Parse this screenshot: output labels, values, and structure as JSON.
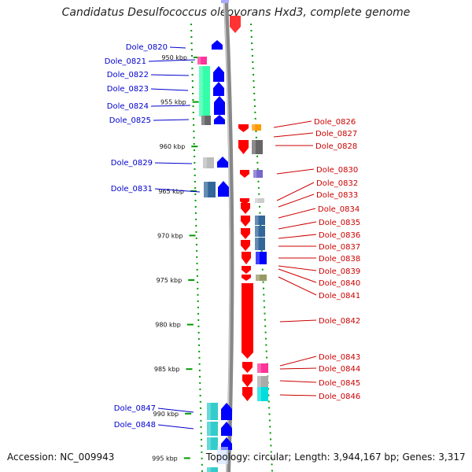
{
  "title": "Candidatus Desulfococcus oleovorans Hxd3, complete genome",
  "footer": {
    "accession": "Accession: NC_009943",
    "topology": "Topology: circular; Length: 3,944,167 bp; Genes: 3,317"
  },
  "scale_ticks": [
    {
      "kbp": 950,
      "label": "950 kbp"
    },
    {
      "kbp": 955,
      "label": "955 kbp"
    },
    {
      "kbp": 960,
      "label": "960 kbp"
    },
    {
      "kbp": 965,
      "label": "965 kbp"
    },
    {
      "kbp": 970,
      "label": "970 kbp"
    },
    {
      "kbp": 975,
      "label": "975 kbp"
    },
    {
      "kbp": 980,
      "label": "980 kbp"
    },
    {
      "kbp": 985,
      "label": "985 kbp"
    },
    {
      "kbp": 990,
      "label": "990 kbp"
    },
    {
      "kbp": 995,
      "label": "995 kbp"
    }
  ],
  "genes_left": [
    {
      "id": "Dole_0820",
      "color": "#ff3399"
    },
    {
      "id": "Dole_0821",
      "color": "#0000ff"
    },
    {
      "id": "Dole_0822",
      "color": "#33ffaa"
    },
    {
      "id": "Dole_0823",
      "color": "#0000ff"
    },
    {
      "id": "Dole_0824",
      "color": "#0000ff"
    },
    {
      "id": "Dole_0825",
      "color": "#666666"
    },
    {
      "id": "Dole_0829",
      "color": "#bbbbbb"
    },
    {
      "id": "Dole_0831",
      "color": "#336699"
    },
    {
      "id": "Dole_0847",
      "color": "#33cccc"
    },
    {
      "id": "Dole_0848",
      "color": "#0000ff"
    }
  ],
  "genes_right": [
    {
      "id": "Dole_0826",
      "color": "#ff0000"
    },
    {
      "id": "Dole_0827",
      "color": "#ff9900"
    },
    {
      "id": "Dole_0828",
      "color": "#666666"
    },
    {
      "id": "Dole_0830",
      "color": "#7766cc"
    },
    {
      "id": "Dole_0832",
      "color": "#ff0000"
    },
    {
      "id": "Dole_0833",
      "color": "#cccccc"
    },
    {
      "id": "Dole_0834",
      "color": "#ff0000"
    },
    {
      "id": "Dole_0835",
      "color": "#336699"
    },
    {
      "id": "Dole_0836",
      "color": "#336699"
    },
    {
      "id": "Dole_0837",
      "color": "#336699"
    },
    {
      "id": "Dole_0838",
      "color": "#0000ff"
    },
    {
      "id": "Dole_0839",
      "color": "#ff0000"
    },
    {
      "id": "Dole_0840",
      "color": "#999966"
    },
    {
      "id": "Dole_0841",
      "color": "#ff0000"
    },
    {
      "id": "Dole_0842",
      "color": "#ff0000"
    },
    {
      "id": "Dole_0843",
      "color": "#ff0000"
    },
    {
      "id": "Dole_0844",
      "color": "#ff3399"
    },
    {
      "id": "Dole_0845",
      "color": "#aaaaaa"
    },
    {
      "id": "Dole_0846",
      "color": "#00dddd"
    }
  ],
  "colors": {
    "left_label": "#0000cc",
    "right_label": "#cc0000",
    "backbone": "#888888",
    "dotted_border": "#009900"
  }
}
